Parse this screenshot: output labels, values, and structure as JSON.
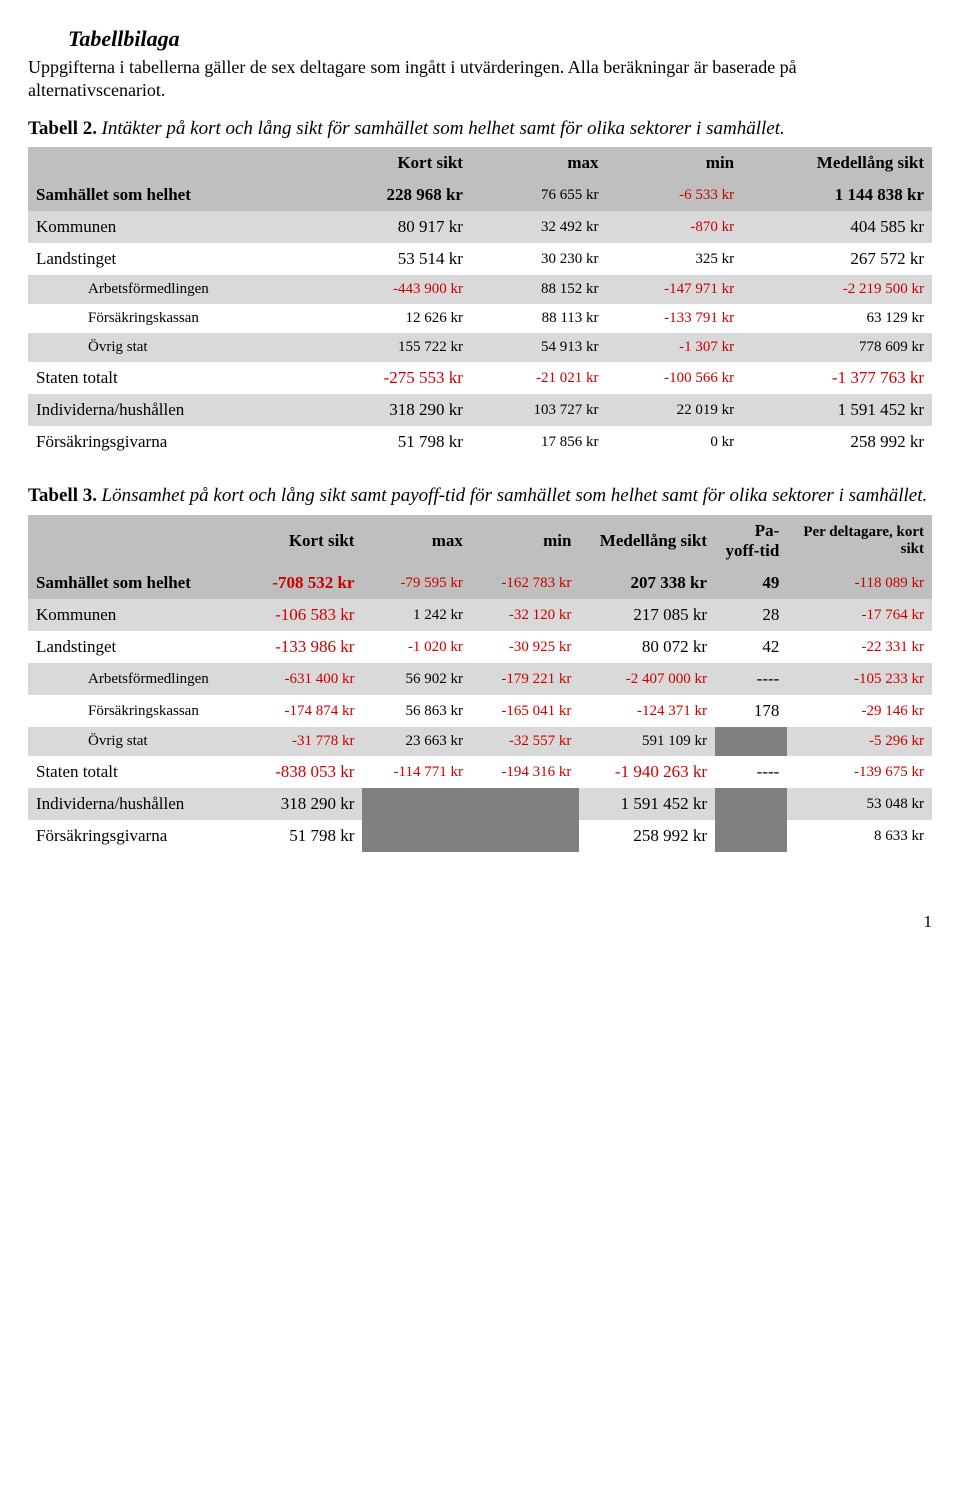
{
  "title": "Tabellbilaga",
  "intro": "Uppgifterna i tabellerna gäller de sex deltagare som ingått i utvärderingen. Alla beräkningar är baserade på alternativscenariot.",
  "t2": {
    "label": "Tabell 2.",
    "caption": "Intäkter på kort och lång sikt för samhället som helhet samt för olika sektorer i samhället.",
    "headers": [
      "Kort sikt",
      "max",
      "min",
      "Medellång sikt"
    ],
    "rows": [
      {
        "label": "Samhället som helhet",
        "cls": "grey",
        "bold": true,
        "v": [
          "228 968 kr",
          "76 655 kr",
          "-6 533 kr",
          "1 144 838 kr"
        ],
        "neg": [
          false,
          false,
          true,
          false
        ],
        "small": [
          false,
          true,
          true,
          false
        ]
      },
      {
        "label": "Kommunen",
        "cls": "lightgrey",
        "bold": false,
        "v": [
          "80 917 kr",
          "32 492 kr",
          "-870 kr",
          "404 585 kr"
        ],
        "neg": [
          false,
          false,
          true,
          false
        ],
        "small": [
          false,
          true,
          true,
          false
        ]
      },
      {
        "label": "Landstinget",
        "cls": "",
        "bold": false,
        "v": [
          "53 514 kr",
          "30 230 kr",
          "325 kr",
          "267 572 kr"
        ],
        "neg": [
          false,
          false,
          false,
          false
        ],
        "small": [
          false,
          true,
          true,
          false
        ]
      },
      {
        "label": "Arbetsförmedlingen",
        "cls": "lightgrey indent",
        "bold": false,
        "v": [
          "-443 900 kr",
          "88 152 kr",
          "-147 971 kr",
          "-2 219 500 kr"
        ],
        "neg": [
          true,
          false,
          true,
          true
        ],
        "small": [
          true,
          true,
          true,
          true
        ],
        "labelsmall": true
      },
      {
        "label": "Försäkringskassan",
        "cls": "indent",
        "bold": false,
        "v": [
          "12 626 kr",
          "88 113 kr",
          "-133 791 kr",
          "63 129 kr"
        ],
        "neg": [
          false,
          false,
          true,
          false
        ],
        "small": [
          true,
          true,
          true,
          true
        ],
        "labelsmall": true
      },
      {
        "label": "Övrig stat",
        "cls": "lightgrey indent",
        "bold": false,
        "v": [
          "155 722 kr",
          "54 913 kr",
          "-1 307 kr",
          "778 609 kr"
        ],
        "neg": [
          false,
          false,
          true,
          false
        ],
        "small": [
          true,
          true,
          true,
          true
        ],
        "labelsmall": true
      },
      {
        "label": "Staten totalt",
        "cls": "",
        "bold": false,
        "v": [
          "-275 553 kr",
          "-21 021 kr",
          "-100 566 kr",
          "-1 377 763 kr"
        ],
        "neg": [
          true,
          true,
          true,
          true
        ],
        "small": [
          false,
          true,
          true,
          false
        ]
      },
      {
        "label": "Individerna/hushållen",
        "cls": "lightgrey",
        "bold": false,
        "v": [
          "318 290 kr",
          "103 727 kr",
          "22 019 kr",
          "1 591 452 kr"
        ],
        "neg": [
          false,
          false,
          false,
          false
        ],
        "small": [
          false,
          true,
          true,
          false
        ]
      },
      {
        "label": "Försäkringsgivarna",
        "cls": "",
        "bold": false,
        "v": [
          "51 798 kr",
          "17 856 kr",
          "0 kr",
          "258 992 kr"
        ],
        "neg": [
          false,
          false,
          false,
          false
        ],
        "small": [
          false,
          true,
          true,
          false
        ]
      }
    ]
  },
  "t3": {
    "label": "Tabell 3.",
    "caption": "Lönsamhet på kort och lång sikt samt payoff-tid för samhället som helhet samt för olika sektorer i samhället.",
    "headers": [
      "Kort sikt",
      "max",
      "min",
      "Medellång sikt",
      "Pa-yoff-tid",
      "Per deltagare, kort sikt"
    ],
    "rows": [
      {
        "label": "Samhället som helhet",
        "cls": "grey",
        "bold": true,
        "v": [
          "-708 532 kr",
          "-79 595 kr",
          "-162 783 kr",
          "207 338 kr",
          "49",
          "-118 089 kr"
        ],
        "neg": [
          true,
          true,
          true,
          false,
          false,
          true
        ],
        "small": [
          false,
          true,
          true,
          false,
          false,
          true
        ],
        "dark": [
          false,
          false,
          false,
          false,
          false,
          false
        ]
      },
      {
        "label": "Kommunen",
        "cls": "lightgrey",
        "bold": false,
        "v": [
          "-106 583 kr",
          "1 242 kr",
          "-32 120 kr",
          "217 085 kr",
          "28",
          "-17 764 kr"
        ],
        "neg": [
          true,
          false,
          true,
          false,
          false,
          true
        ],
        "small": [
          false,
          true,
          true,
          false,
          false,
          true
        ],
        "dark": [
          false,
          false,
          false,
          false,
          false,
          false
        ]
      },
      {
        "label": "Landstinget",
        "cls": "",
        "bold": false,
        "v": [
          "-133 986 kr",
          "-1 020 kr",
          "-30 925 kr",
          "80 072 kr",
          "42",
          "-22 331 kr"
        ],
        "neg": [
          true,
          true,
          true,
          false,
          false,
          true
        ],
        "small": [
          false,
          true,
          true,
          false,
          false,
          true
        ],
        "dark": [
          false,
          false,
          false,
          false,
          false,
          false
        ]
      },
      {
        "label": "Arbetsförmedlingen",
        "cls": "lightgrey indent",
        "bold": false,
        "labelsmall": true,
        "v": [
          "-631 400 kr",
          "56 902 kr",
          "-179 221 kr",
          "-2 407 000 kr",
          "----",
          "-105 233 kr"
        ],
        "neg": [
          true,
          false,
          true,
          true,
          false,
          true
        ],
        "small": [
          true,
          true,
          true,
          true,
          false,
          true
        ],
        "dark": [
          false,
          false,
          false,
          false,
          false,
          false
        ]
      },
      {
        "label": "Försäkringskassan",
        "cls": "indent",
        "bold": false,
        "labelsmall": true,
        "v": [
          "-174 874 kr",
          "56 863 kr",
          "-165 041 kr",
          "-124 371 kr",
          "178",
          "-29 146 kr"
        ],
        "neg": [
          true,
          false,
          true,
          true,
          false,
          true
        ],
        "small": [
          true,
          true,
          true,
          true,
          false,
          true
        ],
        "dark": [
          false,
          false,
          false,
          false,
          false,
          false
        ]
      },
      {
        "label": "Övrig stat",
        "cls": "lightgrey indent",
        "bold": false,
        "labelsmall": true,
        "v": [
          "-31 778 kr",
          "23 663 kr",
          "-32 557 kr",
          "591 109 kr",
          "",
          "-5 296 kr"
        ],
        "neg": [
          true,
          false,
          true,
          false,
          false,
          true
        ],
        "small": [
          true,
          true,
          true,
          true,
          false,
          true
        ],
        "dark": [
          false,
          false,
          false,
          false,
          true,
          false
        ]
      },
      {
        "label": "Staten totalt",
        "cls": "",
        "bold": false,
        "v": [
          "-838 053 kr",
          "-114 771 kr",
          "-194 316 kr",
          "-1 940 263 kr",
          "----",
          "-139 675 kr"
        ],
        "neg": [
          true,
          true,
          true,
          true,
          false,
          true
        ],
        "small": [
          false,
          true,
          true,
          false,
          false,
          true
        ],
        "dark": [
          false,
          false,
          false,
          false,
          false,
          false
        ]
      },
      {
        "label": "Individerna/hushållen",
        "cls": "lightgrey",
        "bold": false,
        "v": [
          "318 290 kr",
          "",
          "",
          "1 591 452 kr",
          "",
          "53 048 kr"
        ],
        "neg": [
          false,
          false,
          false,
          false,
          false,
          false
        ],
        "small": [
          false,
          true,
          true,
          false,
          false,
          true
        ],
        "dark": [
          false,
          true,
          true,
          false,
          true,
          false
        ]
      },
      {
        "label": "Försäkringsgivarna",
        "cls": "",
        "bold": false,
        "v": [
          "51 798 kr",
          "",
          "",
          "258 992 kr",
          "",
          "8 633 kr"
        ],
        "neg": [
          false,
          false,
          false,
          false,
          false,
          false
        ],
        "small": [
          false,
          true,
          true,
          false,
          false,
          true
        ],
        "dark": [
          false,
          true,
          true,
          false,
          true,
          false
        ]
      }
    ]
  },
  "page": "1"
}
